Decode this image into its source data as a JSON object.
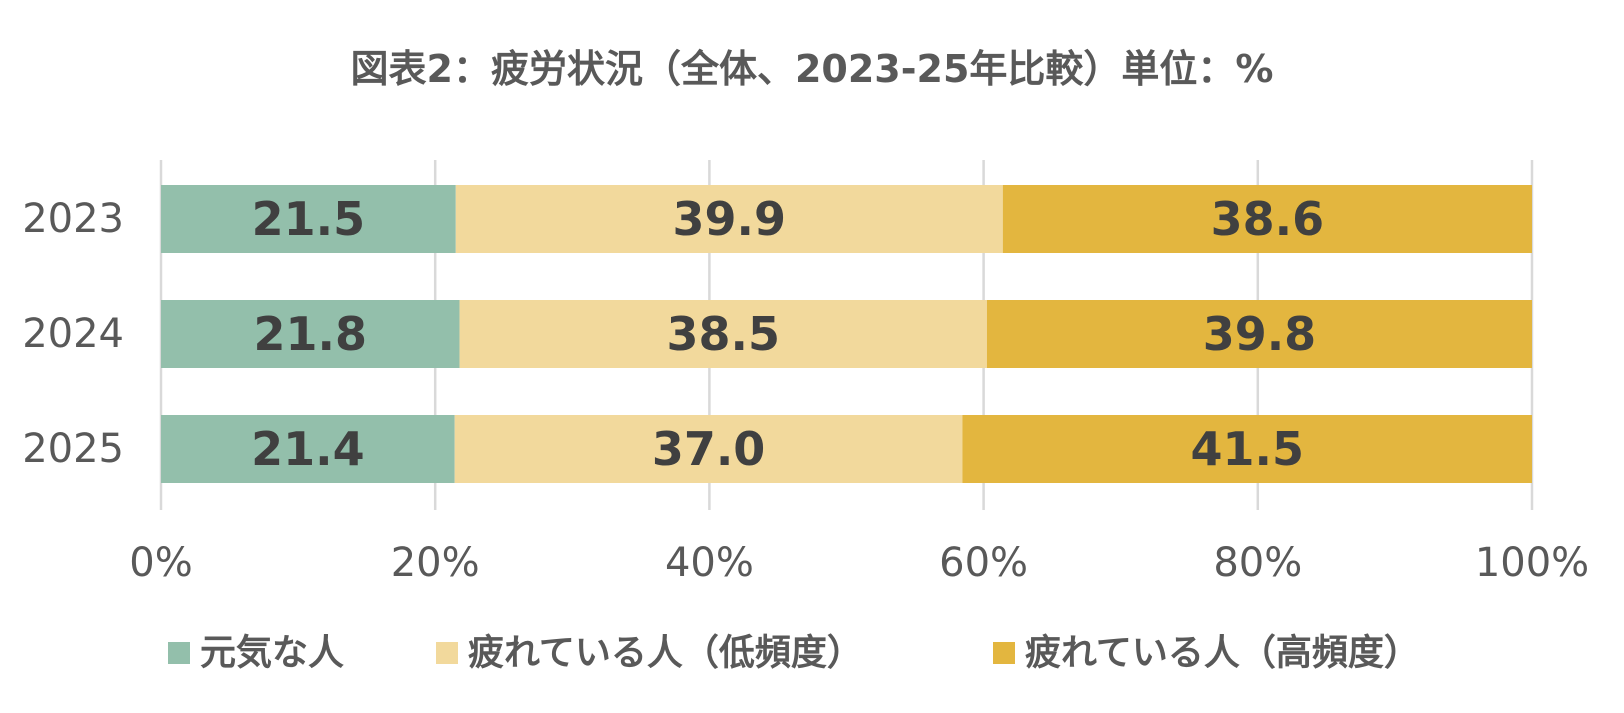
{
  "chart_data": {
    "type": "bar",
    "orientation": "horizontal",
    "stacked": "percent",
    "title": "図表2：疲労状況（全体、2023-25年比較）単位：%",
    "categories": [
      "2023",
      "2024",
      "2025"
    ],
    "series": [
      {
        "name": "元気な人",
        "values": [
          21.5,
          21.8,
          21.4
        ],
        "color": "#93bfab"
      },
      {
        "name": "疲れている人（低頻度）",
        "values": [
          39.9,
          38.5,
          37.0
        ],
        "color": "#f2d99c"
      },
      {
        "name": "疲れている人（高頻度）",
        "values": [
          38.6,
          39.8,
          41.5
        ],
        "color": "#e3b63f"
      }
    ],
    "xlim": [
      0,
      100
    ],
    "x_ticks": [
      "0%",
      "20%",
      "40%",
      "60%",
      "80%",
      "100%"
    ],
    "grid": true,
    "legend": "bottom",
    "data_labels": true
  },
  "colors": {
    "text": "#595959",
    "label": "#404040",
    "grid": "#d9d9d9"
  }
}
